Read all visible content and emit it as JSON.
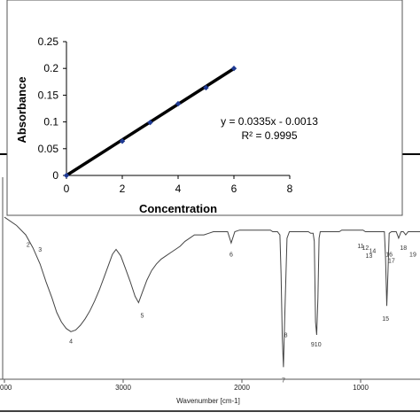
{
  "chart_data": [
    {
      "type": "scatter",
      "title": "",
      "xlabel": "Concentration",
      "ylabel": "Absorbance",
      "xlim": [
        0,
        8
      ],
      "ylim": [
        0,
        0.25
      ],
      "x_ticks": [
        "0",
        "2",
        "4",
        "6",
        "8"
      ],
      "y_ticks": [
        "0",
        "0.05",
        "0.1",
        "0.15",
        "0.2",
        "0.25"
      ],
      "grid": false,
      "series": [
        {
          "x": [
            0,
            2,
            3,
            4,
            5,
            6
          ],
          "y": [
            0,
            0.064,
            0.099,
            0.134,
            0.164,
            0.2
          ],
          "color": "#1f3a93"
        }
      ],
      "trendline": {
        "slope": 0.0335,
        "intercept": -0.0013,
        "color": "#000000"
      },
      "annotations": [
        "y = 0.0335x - 0.0013",
        "R² = 0.9995"
      ]
    },
    {
      "type": "line",
      "title": "",
      "xlabel": "Wavenumber [cm-1]",
      "ylabel": "",
      "xlim": [
        4000,
        500
      ],
      "x_ticks": [
        "000",
        "3000",
        "2000",
        "1000"
      ],
      "grid": false,
      "series": [
        {
          "x": [
            4000,
            3900,
            3820,
            3760,
            3700,
            3650,
            3600,
            3560,
            3520,
            3480,
            3440,
            3400,
            3360,
            3320,
            3280,
            3240,
            3200,
            3160,
            3120,
            3090,
            3060,
            3020,
            2980,
            2940,
            2900,
            2870,
            2840,
            2800,
            2760,
            2720,
            2680,
            2640,
            2600,
            2560,
            2520,
            2480,
            2440,
            2400,
            2360,
            2320,
            2280,
            2240,
            2200,
            2160,
            2120,
            2090,
            2060,
            2020,
            1980,
            1940,
            1900,
            1860,
            1820,
            1780,
            1760,
            1740,
            1720,
            1700,
            1690,
            1680,
            1670,
            1660,
            1650,
            1640,
            1620,
            1600,
            1580,
            1560,
            1540,
            1520,
            1500,
            1480,
            1460,
            1440,
            1420,
            1400,
            1390,
            1380,
            1370,
            1360,
            1350,
            1340,
            1320,
            1300,
            1280,
            1260,
            1240,
            1220,
            1200,
            1180,
            1160,
            1140,
            1120,
            1100,
            1080,
            1060,
            1040,
            1020,
            1000,
            980,
            960,
            940,
            920,
            900,
            880,
            860,
            840,
            820,
            800,
            790,
            780,
            770,
            760,
            740,
            720,
            700,
            680,
            660,
            640,
            620,
            600,
            580,
            560,
            540,
            520,
            500
          ],
          "y": [
            0.95,
            0.9,
            0.84,
            0.76,
            0.66,
            0.55,
            0.45,
            0.36,
            0.3,
            0.26,
            0.24,
            0.25,
            0.28,
            0.32,
            0.37,
            0.43,
            0.5,
            0.58,
            0.66,
            0.72,
            0.75,
            0.71,
            0.63,
            0.55,
            0.46,
            0.42,
            0.48,
            0.56,
            0.62,
            0.66,
            0.69,
            0.71,
            0.73,
            0.75,
            0.77,
            0.8,
            0.82,
            0.84,
            0.84,
            0.84,
            0.85,
            0.86,
            0.86,
            0.86,
            0.86,
            0.79,
            0.86,
            0.87,
            0.87,
            0.87,
            0.87,
            0.87,
            0.87,
            0.87,
            0.87,
            0.86,
            0.86,
            0.86,
            0.85,
            0.84,
            0.6,
            0.2,
            0.02,
            0.3,
            0.82,
            0.86,
            0.86,
            0.86,
            0.86,
            0.86,
            0.86,
            0.86,
            0.86,
            0.86,
            0.85,
            0.85,
            0.8,
            0.3,
            0.22,
            0.45,
            0.82,
            0.86,
            0.86,
            0.86,
            0.86,
            0.86,
            0.86,
            0.86,
            0.86,
            0.86,
            0.87,
            0.87,
            0.87,
            0.87,
            0.87,
            0.87,
            0.87,
            0.87,
            0.87,
            0.87,
            0.86,
            0.86,
            0.86,
            0.86,
            0.86,
            0.86,
            0.86,
            0.86,
            0.86,
            0.7,
            0.4,
            0.6,
            0.85,
            0.86,
            0.86,
            0.86,
            0.82,
            0.86,
            0.86,
            0.84,
            0.86,
            0.86,
            0.86,
            0.86,
            0.86,
            0.86
          ],
          "color": "#444444"
        }
      ],
      "peak_labels": [
        {
          "label": "2",
          "x": 3800,
          "y": 0.8
        },
        {
          "label": "3",
          "x": 3700,
          "y": 0.77
        },
        {
          "label": "4",
          "x": 3440,
          "y": 0.2
        },
        {
          "label": "5",
          "x": 2840,
          "y": 0.36
        },
        {
          "label": "6",
          "x": 2090,
          "y": 0.74
        },
        {
          "label": "7",
          "x": 1650,
          "y": -0.04
        },
        {
          "label": "8",
          "x": 1630,
          "y": 0.24
        },
        {
          "label": "910",
          "x": 1375,
          "y": 0.18
        },
        {
          "label": "11",
          "x": 1000,
          "y": 0.79
        },
        {
          "label": "12",
          "x": 960,
          "y": 0.78
        },
        {
          "label": "13",
          "x": 930,
          "y": 0.73
        },
        {
          "label": "14",
          "x": 900,
          "y": 0.76
        },
        {
          "label": "15",
          "x": 790,
          "y": 0.34
        },
        {
          "label": "16",
          "x": 760,
          "y": 0.74
        },
        {
          "label": "17",
          "x": 740,
          "y": 0.7
        },
        {
          "label": "18",
          "x": 640,
          "y": 0.78
        },
        {
          "label": "19",
          "x": 560,
          "y": 0.74
        }
      ]
    }
  ]
}
